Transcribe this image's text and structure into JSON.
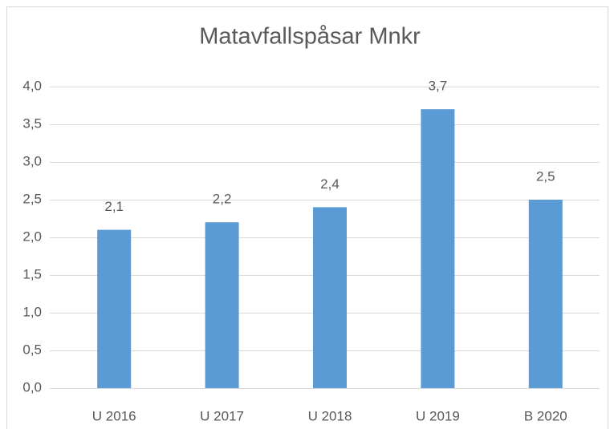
{
  "chart_data": {
    "type": "bar",
    "title": "Matavfallspåsar Mnkr",
    "categories": [
      "U 2016",
      "U 2017",
      "U 2018",
      "U 2019",
      "B 2020"
    ],
    "values": [
      2.1,
      2.2,
      2.4,
      3.7,
      2.5
    ],
    "value_labels": [
      "2,1",
      "2,2",
      "2,4",
      "3,7",
      "2,5"
    ],
    "color": "#5b9bd5",
    "ylim": [
      0,
      4
    ],
    "yticks": [
      {
        "value": 0,
        "label": "0,0"
      },
      {
        "value": 0.5,
        "label": "0,5"
      },
      {
        "value": 1,
        "label": "1,0"
      },
      {
        "value": 1.5,
        "label": "1,5"
      },
      {
        "value": 2,
        "label": "2,0"
      },
      {
        "value": 2.5,
        "label": "2,5"
      },
      {
        "value": 3,
        "label": "3,0"
      },
      {
        "value": 3.5,
        "label": "3,5"
      },
      {
        "value": 4,
        "label": "4,0"
      }
    ],
    "grid": true
  }
}
